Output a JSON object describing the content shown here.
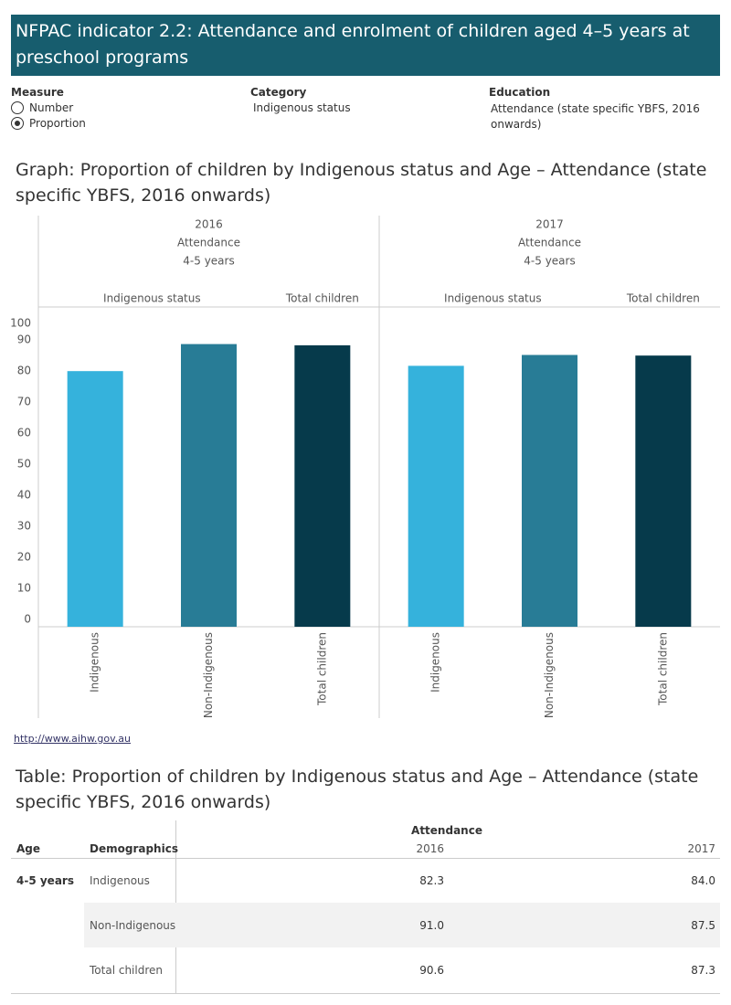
{
  "header": {
    "title": "NFPAC indicator 2.2: Attendance and enrolment of children aged 4–5 years at preschool programs"
  },
  "filters": {
    "measure": {
      "label": "Measure",
      "options": [
        "Number",
        "Proportion"
      ],
      "selected": 1
    },
    "category": {
      "label": "Category",
      "value": "Indigenous status"
    },
    "education": {
      "label": "Education",
      "value": "Attendance (state specific YBFS, 2016 onwards)"
    }
  },
  "chart_data": {
    "type": "bar",
    "title": "Graph: Proportion of children by Indigenous status and Age – Attendance (state specific YBFS, 2016 onwards)",
    "groups": [
      {
        "label": "Indigenous status",
        "categories": [
          "Indigenous",
          "Non-Indigenous"
        ]
      },
      {
        "label": "Total children",
        "categories": [
          "Total children"
        ]
      }
    ],
    "colors": [
      "#35b2dc",
      "#287c96",
      "#063a4b"
    ],
    "panels": [
      {
        "year": "2016",
        "measure": "Attendance",
        "age": "4-5 years",
        "values": [
          82.3,
          91.0,
          90.6
        ]
      },
      {
        "year": "2017",
        "measure": "Attendance",
        "age": "4-5 years",
        "values": [
          84.0,
          87.5,
          87.3
        ]
      }
    ],
    "ylim": [
      0,
      100
    ],
    "yticks": [
      0,
      10,
      20,
      30,
      40,
      50,
      60,
      70,
      80,
      90,
      100
    ]
  },
  "source": "http://www.aihw.gov.au",
  "table": {
    "title": "Table: Proportion of children by Indigenous status and Age – Attendance (state specific YBFS, 2016 onwards)",
    "header": {
      "age": "Age",
      "demographics": "Demographics",
      "measure": "Attendance",
      "years": [
        "2016",
        "2017"
      ]
    },
    "rows": [
      {
        "age": "4-5 years",
        "demographic": "Indigenous",
        "values": [
          "82.3",
          "84.0"
        ]
      },
      {
        "demographic": "Non-Indigenous",
        "values": [
          "91.0",
          "87.5"
        ]
      },
      {
        "demographic": "Total children",
        "values": [
          "90.6",
          "87.3"
        ]
      }
    ]
  }
}
